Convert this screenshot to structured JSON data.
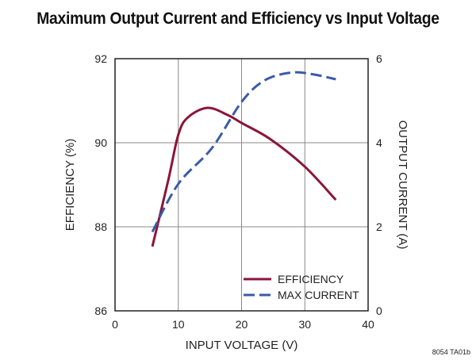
{
  "chart_data": {
    "type": "line",
    "title": "Maximum Output Current and Efficiency vs Input Voltage",
    "xlabel": "INPUT VOLTAGE (V)",
    "ylabel": "EFFICIENCY (%)",
    "y2label": "OUTPUT CURRENT (A)",
    "xlim": [
      0,
      40
    ],
    "ylim": [
      86,
      92
    ],
    "y2lim": [
      0,
      6
    ],
    "xticks": [
      "0",
      "10",
      "20",
      "30",
      "40"
    ],
    "yticks": [
      "86",
      "88",
      "90",
      "92"
    ],
    "y2ticks": [
      "0",
      "2",
      "4",
      "6"
    ],
    "grid": true,
    "legend_position": "bottom-right",
    "footnote": "8054 TA01b",
    "series": [
      {
        "name": "EFFICIENCY",
        "axis": "left",
        "color": "#8b1538",
        "style": "solid",
        "x": [
          5.9,
          8.4,
          10,
          11.5,
          14.6,
          17.8,
          20,
          24.5,
          30,
          34.9
        ],
        "y": [
          87.53,
          89.1,
          90.19,
          90.6,
          90.83,
          90.66,
          90.47,
          90.09,
          89.43,
          88.64
        ]
      },
      {
        "name": "MAX CURRENT",
        "axis": "right",
        "color": "#3a5ba8",
        "style": "dashed",
        "x": [
          5.9,
          10,
          15.3,
          20,
          23.6,
          27.8,
          31.2,
          34.9
        ],
        "y": [
          1.88,
          3.02,
          3.87,
          4.97,
          5.48,
          5.67,
          5.63,
          5.51
        ]
      }
    ]
  }
}
